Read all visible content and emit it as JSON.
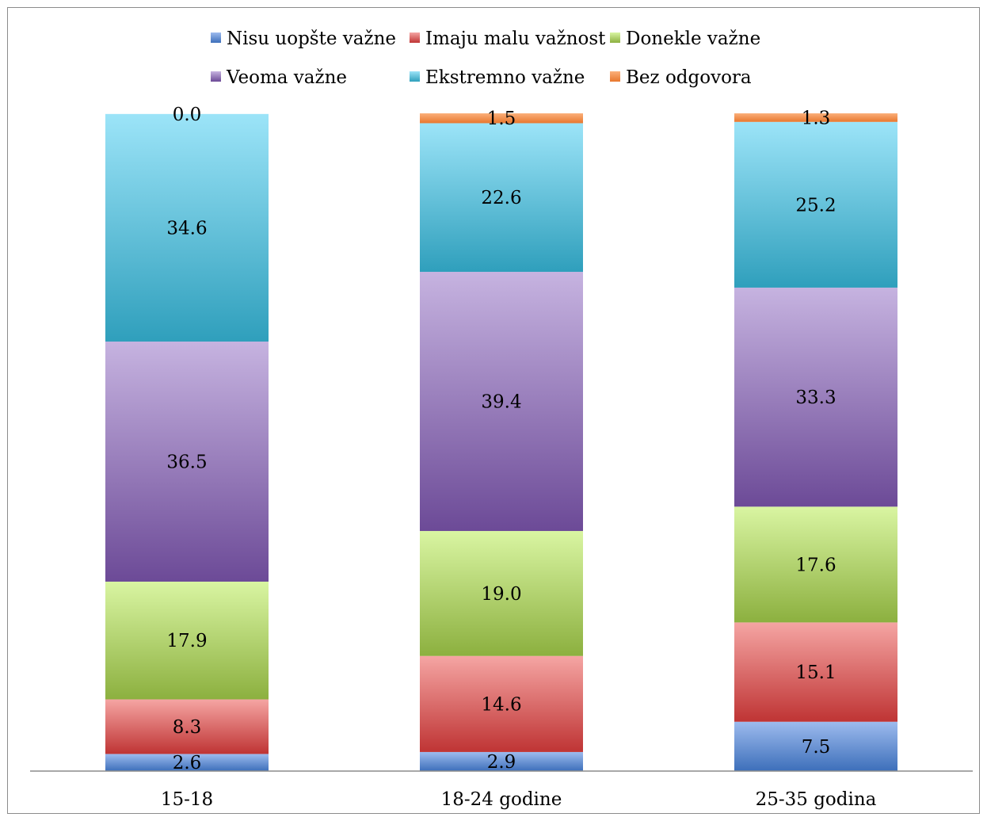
{
  "chart_data": {
    "type": "bar",
    "stacked": true,
    "categories": [
      "15-18",
      "18-24 godine",
      "25-35 godina"
    ],
    "series": [
      {
        "name": "Nisu uopšte važne",
        "values": [
          2.6,
          2.9,
          7.5
        ],
        "color_top": "#9dbbee",
        "color_bottom": "#3d6fba"
      },
      {
        "name": "Imaju malu važnost",
        "values": [
          8.3,
          14.6,
          15.1
        ],
        "color_top": "#f5a5a3",
        "color_bottom": "#bf3434"
      },
      {
        "name": "Donekle važne",
        "values": [
          17.9,
          19.0,
          17.6
        ],
        "color_top": "#d9f5a2",
        "color_bottom": "#8cb03f"
      },
      {
        "name": "Veoma važne",
        "values": [
          36.5,
          39.4,
          33.3
        ],
        "color_top": "#c6b3e0",
        "color_bottom": "#6c4a97"
      },
      {
        "name": "Ekstremno važne",
        "values": [
          34.6,
          22.6,
          25.2
        ],
        "color_top": "#9ce4f8",
        "color_bottom": "#2f9fbc"
      },
      {
        "name": "Bez odgovora",
        "values": [
          0.0,
          1.5,
          1.3
        ],
        "color_top": "#fbb07a",
        "color_bottom": "#e8772e"
      }
    ],
    "legend_position": "top",
    "grid": false,
    "ylim": [
      0,
      100
    ]
  }
}
